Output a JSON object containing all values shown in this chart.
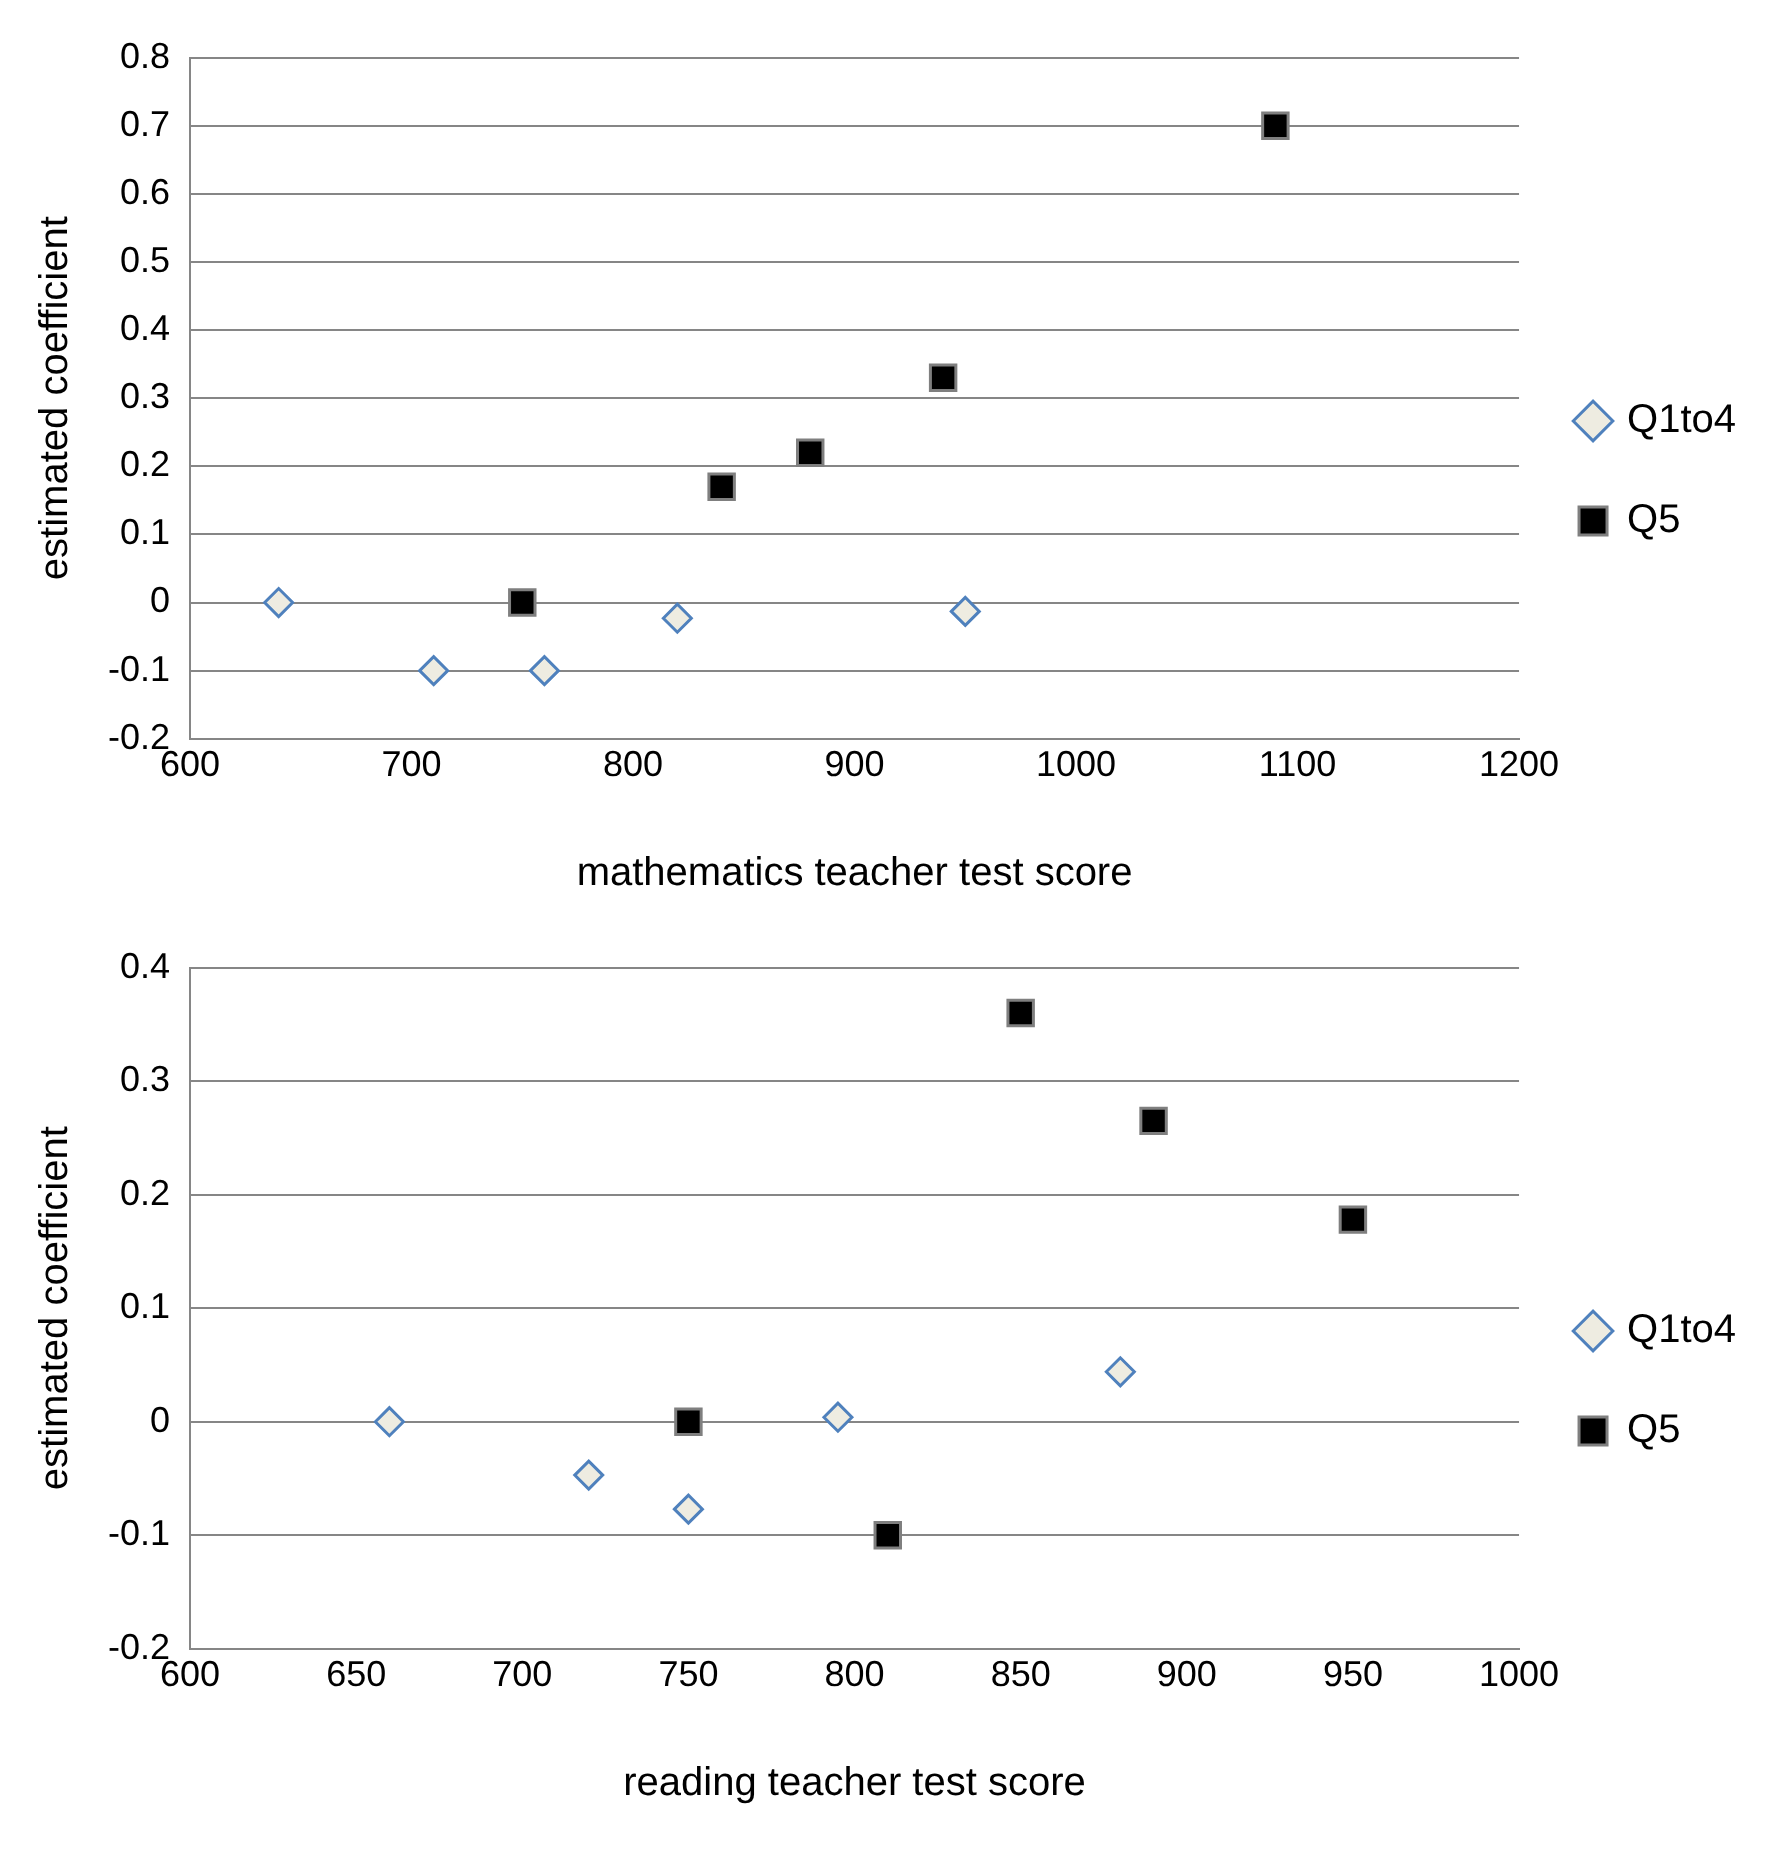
{
  "chart_data": [
    {
      "type": "scatter",
      "xlabel": "mathematics teacher test score",
      "ylabel": "estimated coefficient",
      "xlim": [
        600,
        1200
      ],
      "xticks": [
        600,
        700,
        800,
        900,
        1000,
        1100,
        1200
      ],
      "ylim": [
        -0.2,
        0.8
      ],
      "yticks": [
        -0.2,
        -0.1,
        0,
        0.1,
        0.2,
        0.3,
        0.4,
        0.5,
        0.6,
        0.7,
        0.8
      ],
      "grid": "y",
      "legend": "right",
      "series": [
        {
          "name": "Q1to4",
          "color": "#4f81bd",
          "marker": "diamond",
          "x": [
            640,
            710,
            760,
            820,
            950
          ],
          "values": [
            0,
            -0.1,
            -0.1,
            -0.023,
            -0.013
          ]
        },
        {
          "name": "Q5",
          "color": "#000000",
          "marker": "square",
          "x": [
            750,
            840,
            880,
            940,
            1090
          ],
          "values": [
            0,
            0.17,
            0.22,
            0.33,
            0.7
          ]
        }
      ]
    },
    {
      "type": "scatter",
      "xlabel": "reading teacher test score",
      "ylabel": "estimated coefficient",
      "xlim": [
        600,
        1000
      ],
      "xticks": [
        600,
        650,
        700,
        750,
        800,
        850,
        900,
        950,
        1000
      ],
      "ylim": [
        -0.2,
        0.4
      ],
      "yticks": [
        -0.2,
        -0.1,
        0,
        0.1,
        0.2,
        0.3,
        0.4
      ],
      "grid": "y",
      "legend": "right",
      "series": [
        {
          "name": "Q1to4",
          "color": "#4f81bd",
          "marker": "diamond",
          "x": [
            660,
            720,
            750,
            795,
            880
          ],
          "values": [
            0,
            -0.047,
            -0.077,
            0.004,
            0.044
          ]
        },
        {
          "name": "Q5",
          "color": "#000000",
          "marker": "square",
          "x": [
            750,
            810,
            850,
            890,
            950
          ],
          "values": [
            0,
            -0.1,
            0.36,
            0.265,
            0.178
          ]
        }
      ]
    }
  ]
}
